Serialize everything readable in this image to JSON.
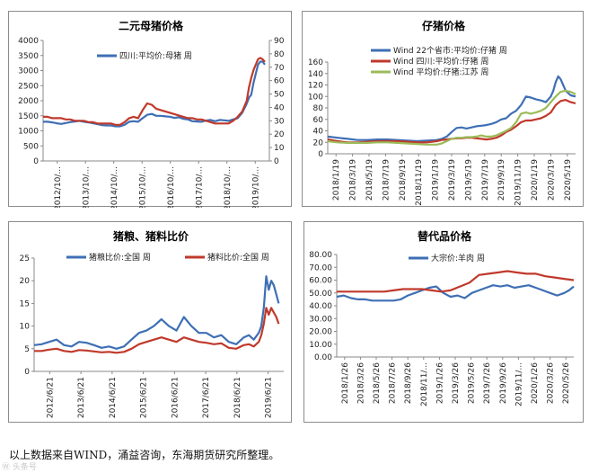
{
  "footer_text": "以上数据来自WIND，涌益咨询，东海期货研究所整理。",
  "watermark": "Ⓦ 头条号",
  "colors": {
    "blue": "#3e6fb4",
    "red": "#c0392b",
    "green": "#9bbb59",
    "axis": "#888888"
  },
  "chart_data": [
    {
      "id": "sow",
      "type": "line",
      "title": "二元母猪价格",
      "ylim": [
        0,
        4000
      ],
      "yticks": [
        0,
        500,
        1000,
        1500,
        2000,
        2500,
        3000,
        3500,
        4000
      ],
      "y2lim": [
        0,
        90
      ],
      "y2ticks": [
        0,
        10,
        20,
        30,
        40,
        50,
        60,
        70,
        80,
        90
      ],
      "xlim": [
        0,
        100
      ],
      "xtick_labels": [
        "2012/10/...",
        "2013/10/...",
        "2014/10/...",
        "2015/10/...",
        "2016/10/...",
        "2017/10/...",
        "2018/10/...",
        "2019/10/..."
      ],
      "series": [
        {
          "name": "四川:平均价:母猪 周",
          "color": "#3e6fb4",
          "axis": "left",
          "x": [
            0,
            2,
            4,
            6,
            8,
            10,
            12,
            14,
            16,
            18,
            20,
            22,
            24,
            26,
            28,
            30,
            32,
            34,
            36,
            38,
            40,
            42,
            44,
            46,
            48,
            50,
            52,
            54,
            56,
            58,
            60,
            62,
            64,
            66,
            68,
            70,
            72,
            74,
            76,
            78,
            80,
            82,
            84,
            86,
            88,
            90,
            91,
            92,
            93,
            94,
            95,
            96,
            97,
            98
          ],
          "values": [
            1300,
            1300,
            1280,
            1250,
            1230,
            1260,
            1290,
            1310,
            1330,
            1300,
            1280,
            1250,
            1220,
            1190,
            1180,
            1180,
            1150,
            1150,
            1200,
            1300,
            1320,
            1300,
            1420,
            1530,
            1560,
            1500,
            1500,
            1480,
            1470,
            1430,
            1450,
            1400,
            1380,
            1320,
            1310,
            1300,
            1340,
            1360,
            1320,
            1360,
            1350,
            1330,
            1380,
            1420,
            1600,
            1900,
            2100,
            2200,
            2600,
            2900,
            3200,
            3300,
            3300,
            3200
          ]
        },
        {
          "name": "",
          "color": "#c0392b",
          "axis": "right",
          "x": [
            0,
            2,
            4,
            6,
            8,
            10,
            12,
            14,
            16,
            18,
            20,
            22,
            24,
            26,
            28,
            30,
            32,
            34,
            36,
            38,
            40,
            42,
            44,
            46,
            48,
            50,
            52,
            54,
            56,
            58,
            60,
            62,
            64,
            66,
            68,
            70,
            72,
            74,
            76,
            78,
            80,
            82,
            84,
            86,
            88,
            90,
            91,
            92,
            93,
            94,
            95,
            96,
            97,
            98
          ],
          "values": [
            33,
            33,
            32,
            32,
            32,
            31,
            31,
            30,
            30,
            30,
            29,
            29,
            28,
            28,
            28,
            28,
            27,
            27,
            29,
            32,
            33,
            32,
            38,
            43,
            42,
            39,
            38,
            37,
            36,
            35,
            34,
            33,
            32,
            32,
            31,
            31,
            30,
            29,
            28,
            28,
            28,
            28,
            30,
            33,
            37,
            45,
            55,
            62,
            68,
            72,
            76,
            77,
            76,
            74
          ]
        }
      ]
    },
    {
      "id": "piglet",
      "type": "line",
      "title": "仔猪价格",
      "ylim": [
        0,
        160
      ],
      "yticks": [
        0,
        20,
        40,
        60,
        80,
        100,
        120,
        140,
        160
      ],
      "xlim": [
        0,
        100
      ],
      "xtick_labels": [
        "2018/1/19",
        "2018/3/19",
        "2018/5/19",
        "2018/7/19",
        "2018/9/19",
        "2018/11/19",
        "2019/1/19",
        "2019/3/19",
        "2019/5/19",
        "2019/7/19",
        "2019/9/19",
        "2019/11/19",
        "2020/1/19",
        "2020/3/19",
        "2020/5/19"
      ],
      "series": [
        {
          "name": "Wind 22个省市:平均价:仔猪 周",
          "color": "#3e6fb4",
          "x": [
            0,
            4,
            8,
            12,
            16,
            20,
            24,
            28,
            32,
            36,
            40,
            44,
            46,
            48,
            50,
            52,
            54,
            56,
            58,
            60,
            62,
            64,
            66,
            68,
            70,
            72,
            74,
            76,
            78,
            80,
            82,
            84,
            86,
            88,
            90,
            91,
            92,
            93,
            94,
            96,
            98,
            100
          ],
          "values": [
            30,
            28,
            26,
            24,
            24,
            25,
            25,
            24,
            23,
            22,
            23,
            24,
            26,
            30,
            38,
            45,
            46,
            44,
            46,
            48,
            49,
            50,
            52,
            55,
            60,
            62,
            70,
            75,
            85,
            100,
            98,
            95,
            93,
            90,
            100,
            110,
            125,
            135,
            130,
            110,
            102,
            100
          ]
        },
        {
          "name": "Wind 四川:平均价:仔猪 周",
          "color": "#c0392b",
          "x": [
            0,
            4,
            8,
            12,
            16,
            20,
            24,
            28,
            32,
            36,
            40,
            44,
            46,
            48,
            50,
            52,
            54,
            56,
            58,
            60,
            62,
            64,
            66,
            68,
            70,
            72,
            74,
            76,
            78,
            80,
            82,
            84,
            86,
            88,
            90,
            92,
            94,
            96,
            98,
            100
          ],
          "values": [
            25,
            22,
            20,
            20,
            21,
            22,
            22,
            22,
            21,
            20,
            20,
            22,
            24,
            25,
            26,
            27,
            27,
            28,
            28,
            27,
            26,
            25,
            26,
            28,
            32,
            38,
            42,
            48,
            55,
            58,
            58,
            60,
            62,
            66,
            72,
            85,
            92,
            94,
            90,
            88
          ]
        },
        {
          "name": "Wind 平均价:仔猪:江苏 周",
          "color": "#9bbb59",
          "x": [
            0,
            4,
            8,
            12,
            16,
            20,
            24,
            28,
            32,
            36,
            40,
            44,
            46,
            48,
            50,
            52,
            54,
            56,
            58,
            60,
            62,
            64,
            66,
            68,
            70,
            72,
            74,
            76,
            78,
            80,
            82,
            84,
            86,
            88,
            90,
            92,
            94,
            96,
            98,
            100
          ],
          "values": [
            22,
            20,
            19,
            19,
            19,
            20,
            20,
            19,
            18,
            17,
            16,
            16,
            18,
            22,
            26,
            28,
            28,
            29,
            29,
            30,
            32,
            30,
            30,
            32,
            36,
            40,
            45,
            55,
            70,
            72,
            70,
            72,
            75,
            80,
            90,
            100,
            108,
            110,
            108,
            104
          ]
        }
      ]
    },
    {
      "id": "ratio",
      "type": "line",
      "title": "猪粮、猪料比价",
      "ylim": [
        0,
        25
      ],
      "yticks": [
        0,
        5,
        10,
        15,
        20,
        25
      ],
      "xlim": [
        0,
        100
      ],
      "xtick_labels": [
        "2012/6/21",
        "2013/6/21",
        "2014/6/21",
        "2015/6/21",
        "2016/6/21",
        "2017/6/21",
        "2018/6/21",
        "2019/6/21"
      ],
      "series": [
        {
          "name": "猪粮比价:全国 周",
          "color": "#3e6fb4",
          "x": [
            0,
            3,
            6,
            9,
            12,
            15,
            18,
            21,
            24,
            27,
            30,
            33,
            36,
            39,
            42,
            45,
            48,
            51,
            54,
            57,
            60,
            63,
            66,
            69,
            72,
            75,
            78,
            81,
            84,
            86,
            88,
            90,
            91,
            92,
            93,
            94,
            95,
            96,
            97,
            98
          ],
          "values": [
            5.8,
            6.0,
            6.5,
            7.0,
            5.8,
            5.5,
            6.5,
            6.3,
            5.8,
            5.2,
            5.5,
            5.0,
            5.5,
            7.0,
            8.5,
            9.0,
            10.0,
            11.5,
            10.0,
            9.0,
            12.0,
            10.0,
            8.5,
            8.5,
            7.5,
            8.0,
            6.5,
            6.0,
            7.5,
            8.0,
            7.0,
            8.5,
            10.0,
            14.0,
            21.0,
            18.0,
            20.0,
            19.0,
            17.0,
            15.0
          ]
        },
        {
          "name": "猪料比价:全国 周",
          "color": "#c0392b",
          "x": [
            0,
            3,
            6,
            9,
            12,
            15,
            18,
            21,
            24,
            27,
            30,
            33,
            36,
            39,
            42,
            45,
            48,
            51,
            54,
            57,
            60,
            63,
            66,
            69,
            72,
            75,
            78,
            81,
            84,
            86,
            88,
            90,
            91,
            92,
            93,
            94,
            95,
            96,
            97,
            98
          ],
          "values": [
            4.5,
            4.5,
            4.8,
            5.0,
            4.5,
            4.3,
            4.7,
            4.6,
            4.4,
            4.2,
            4.3,
            4.1,
            4.3,
            5.0,
            6.0,
            6.5,
            7.0,
            7.5,
            7.0,
            6.5,
            7.5,
            7.0,
            6.5,
            6.3,
            6.0,
            6.2,
            5.2,
            5.0,
            5.8,
            6.0,
            5.5,
            6.5,
            8.0,
            10.5,
            14.0,
            12.5,
            14.0,
            13.0,
            12.0,
            10.5
          ]
        }
      ]
    },
    {
      "id": "mutton",
      "type": "line",
      "title": "替代品价格",
      "ylim": [
        0,
        80
      ],
      "yticks": [
        "0.00",
        "10.00",
        "20.00",
        "30.00",
        "40.00",
        "50.00",
        "60.00",
        "70.00",
        "80.00"
      ],
      "xlim": [
        0,
        100
      ],
      "xtick_labels": [
        "2018/1/26",
        "2018/3/26",
        "2018/5/26",
        "2018/7/26",
        "2018/9/26",
        "2018/11/...",
        "2019/1/26",
        "2019/3/26",
        "2019/5/26",
        "2019/7/26",
        "2019/9/26",
        "2019/11/...",
        "2020/1/26",
        "2020/3/26",
        "2020/5/26"
      ],
      "series": [
        {
          "name": "大宗价:羊肉 周",
          "color": "#3e6fb4",
          "x": [
            0,
            3,
            6,
            9,
            12,
            15,
            18,
            21,
            24,
            27,
            30,
            33,
            36,
            39,
            42,
            45,
            48,
            51,
            54,
            57,
            60,
            63,
            66,
            69,
            72,
            75,
            78,
            81,
            84,
            87,
            90,
            93,
            96,
            98,
            100
          ],
          "values": [
            47,
            48,
            46,
            45,
            45,
            44,
            44,
            44,
            44,
            45,
            48,
            50,
            52,
            54,
            55,
            50,
            47,
            48,
            46,
            50,
            52,
            54,
            56,
            55,
            56,
            54,
            55,
            56,
            54,
            52,
            50,
            48,
            50,
            52,
            55
          ]
        },
        {
          "name": "",
          "color": "#c0392b",
          "x": [
            0,
            4,
            8,
            12,
            16,
            20,
            24,
            28,
            32,
            36,
            40,
            44,
            48,
            52,
            56,
            60,
            64,
            68,
            72,
            76,
            80,
            84,
            88,
            92,
            96,
            100
          ],
          "values": [
            51,
            51,
            51,
            51,
            51,
            51,
            52,
            53,
            53,
            53,
            52,
            51,
            52,
            55,
            58,
            64,
            65,
            66,
            67,
            66,
            65,
            65,
            63,
            62,
            61,
            60
          ]
        }
      ]
    }
  ]
}
